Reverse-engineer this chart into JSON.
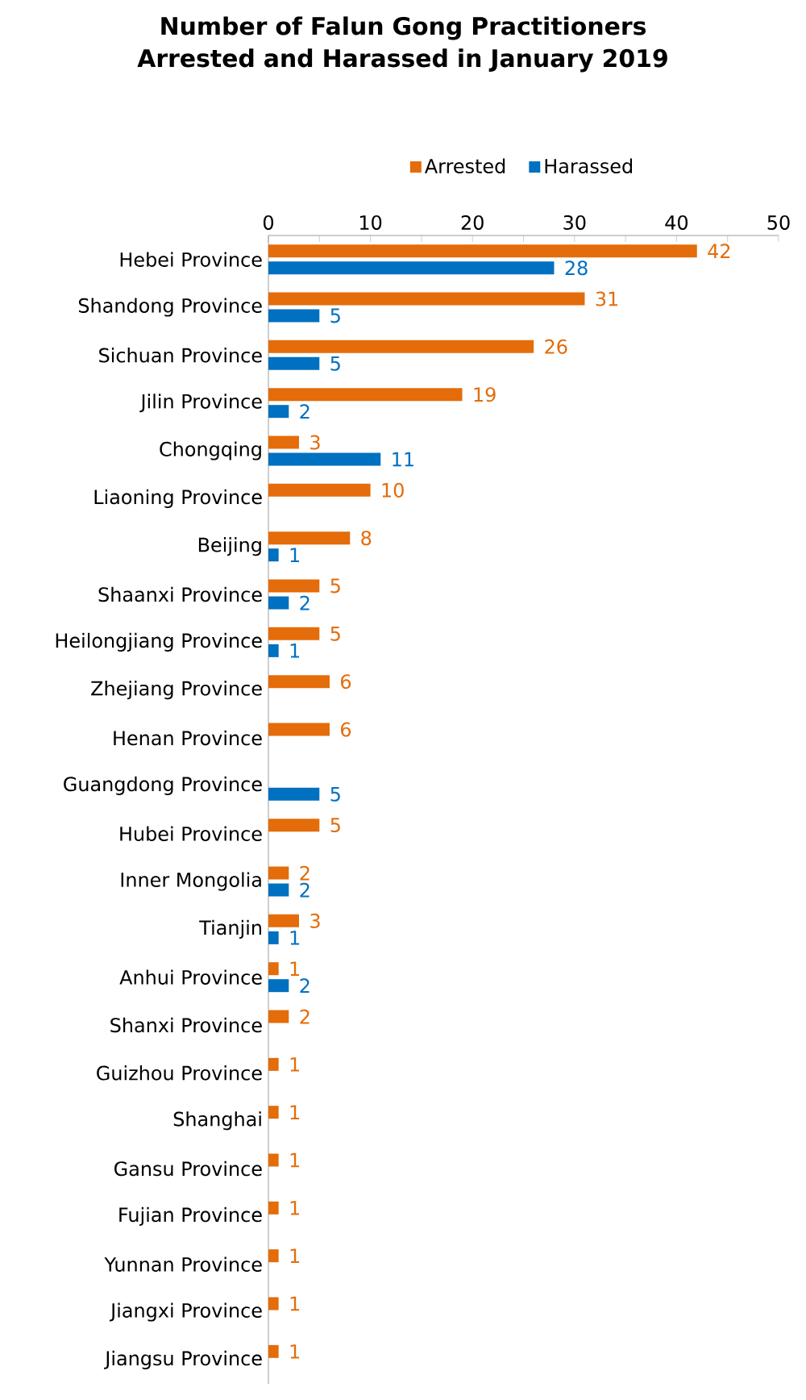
{
  "chart_data": {
    "type": "bar",
    "orientation": "horizontal",
    "title": "Number of Falun Gong Practitioners Arrested and Harassed in January 2019",
    "categories": [
      "Hebei Province",
      "Shandong Province",
      "Sichuan Province",
      "Jilin Province",
      "Chongqing",
      "Liaoning Province",
      "Beijing",
      "Shaanxi Province",
      "Heilongjiang Province",
      "Zhejiang Province",
      "Henan Province",
      "Guangdong Province",
      "Hubei Province",
      "Inner Mongolia",
      "Tianjin",
      "Anhui Province",
      "Shanxi Province",
      "Guizhou Province",
      "Shanghai",
      "Gansu Province",
      "Fujian Province",
      "Yunnan Province",
      "Jiangxi Province",
      "Jiangsu Province"
    ],
    "series": [
      {
        "name": "Arrested",
        "color": "#e46c0a",
        "values": [
          42,
          31,
          26,
          19,
          3,
          10,
          8,
          5,
          5,
          6,
          6,
          null,
          5,
          2,
          3,
          1,
          2,
          1,
          1,
          1,
          1,
          1,
          1,
          1
        ]
      },
      {
        "name": "Harassed",
        "color": "#0070c0",
        "values": [
          28,
          5,
          5,
          2,
          11,
          null,
          1,
          2,
          1,
          null,
          null,
          5,
          null,
          2,
          1,
          2,
          null,
          null,
          null,
          null,
          null,
          null,
          null,
          null
        ]
      }
    ],
    "xlim": [
      0,
      50
    ],
    "xticks": [
      0,
      {
        "value": 5,
        "label": null
      },
      10,
      {
        "value": 15,
        "label": null
      },
      20,
      {
        "value": 25,
        "label": null
      },
      30,
      {
        "value": 35,
        "label": null
      },
      40,
      {
        "value": 45,
        "label": null
      },
      50
    ],
    "legend": "top",
    "data_labels": true
  }
}
